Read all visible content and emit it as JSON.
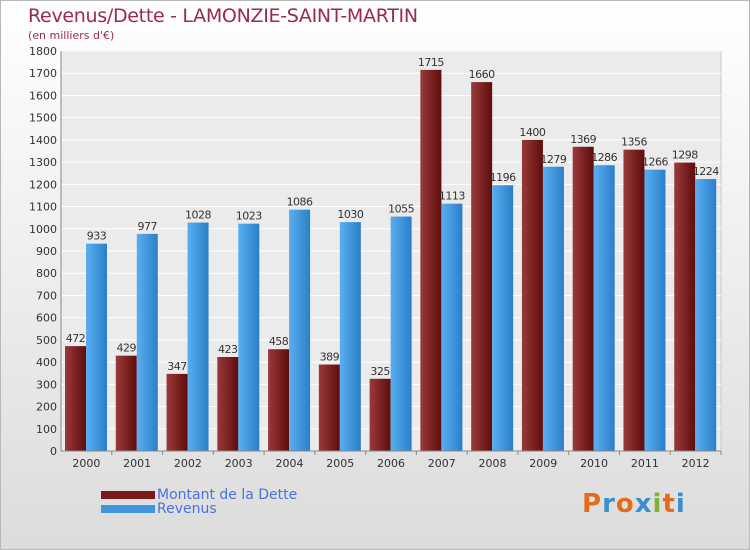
{
  "title": "Revenus/Dette - LAMONZIE-SAINT-MARTIN",
  "subtitle": "(en milliers d'€)",
  "logo": {
    "text": "Proxiti",
    "colors": [
      "#e36c1b",
      "#3a8fcf",
      "#e36c1b",
      "#3a8fcf",
      "#7fb23a",
      "#e36c1b",
      "#3a8fcf"
    ]
  },
  "colors": {
    "dette": "#7a1a1a",
    "revenus": "#3f96dd"
  },
  "chart_data": {
    "type": "bar",
    "title": "Revenus/Dette - LAMONZIE-SAINT-MARTIN",
    "subtitle": "(en milliers d'€)",
    "xlabel": "",
    "ylabel": "",
    "ylim": [
      0,
      1800
    ],
    "yticks": [
      0,
      100,
      200,
      300,
      400,
      500,
      600,
      700,
      800,
      900,
      1000,
      1100,
      1200,
      1300,
      1400,
      1500,
      1600,
      1700,
      1800
    ],
    "grid": true,
    "legend_position": "bottom-left",
    "categories": [
      "2000",
      "2001",
      "2002",
      "2003",
      "2004",
      "2005",
      "2006",
      "2007",
      "2008",
      "2009",
      "2010",
      "2011",
      "2012"
    ],
    "series": [
      {
        "name": "Montant de la Dette",
        "values": [
          472,
          429,
          347,
          423,
          458,
          389,
          325,
          1715,
          1660,
          1400,
          1369,
          1356,
          1298
        ]
      },
      {
        "name": "Revenus",
        "values": [
          933,
          977,
          1028,
          1023,
          1086,
          1030,
          1055,
          1113,
          1196,
          1279,
          1286,
          1266,
          1224
        ]
      }
    ]
  }
}
